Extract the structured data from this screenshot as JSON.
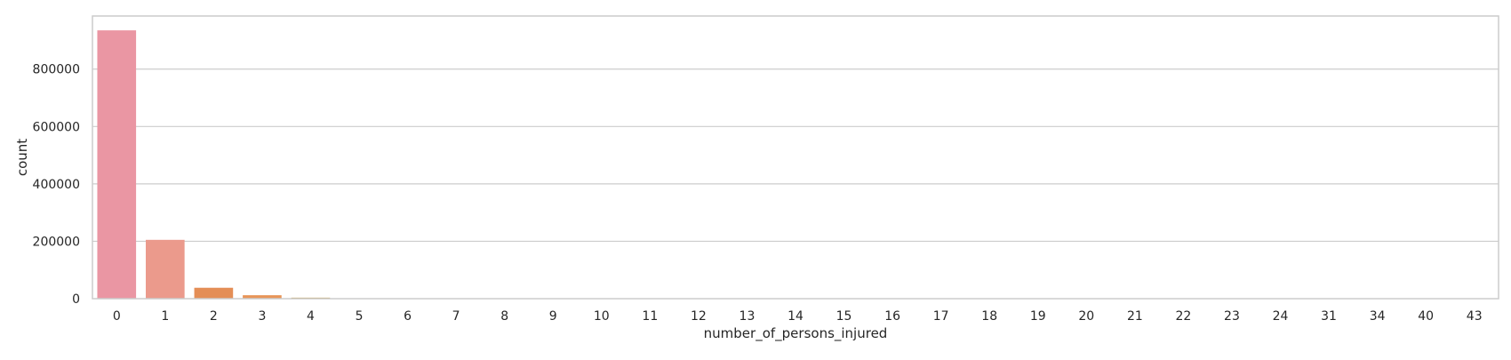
{
  "chart_data": {
    "type": "bar",
    "xlabel": "number_of_persons_injured",
    "ylabel": "count",
    "categories": [
      "0",
      "1",
      "2",
      "3",
      "4",
      "5",
      "6",
      "7",
      "8",
      "9",
      "10",
      "11",
      "12",
      "13",
      "14",
      "15",
      "16",
      "17",
      "18",
      "19",
      "20",
      "21",
      "22",
      "23",
      "24",
      "31",
      "34",
      "40",
      "43"
    ],
    "values": [
      935000,
      205000,
      38000,
      12000,
      3500,
      1500,
      600,
      300,
      150,
      80,
      50,
      30,
      20,
      15,
      10,
      8,
      6,
      5,
      4,
      3,
      3,
      2,
      2,
      2,
      1,
      1,
      1,
      1,
      1
    ],
    "yticks": [
      0,
      200000,
      400000,
      600000,
      800000
    ],
    "ylim": [
      0,
      985000
    ],
    "grid": true,
    "colors": [
      "#ea96a3",
      "#eb9a8c",
      "#e48e56",
      "#e89558",
      "#cea44f",
      "#c4a74d",
      "#b9ab4b",
      "#aeaf4a",
      "#a2b34a",
      "#94b74b",
      "#84bb4c",
      "#72be50",
      "#5ac257",
      "#4bc276",
      "#4ec18d",
      "#50c09b",
      "#51bfa7",
      "#53beb1",
      "#54bdbb",
      "#56bcc6",
      "#58bad2",
      "#5cb8dc",
      "#67b3e5",
      "#80aaeb",
      "#9da0ec",
      "#b493ec",
      "#cb89e7",
      "#e183db",
      "#ea83c6"
    ]
  }
}
